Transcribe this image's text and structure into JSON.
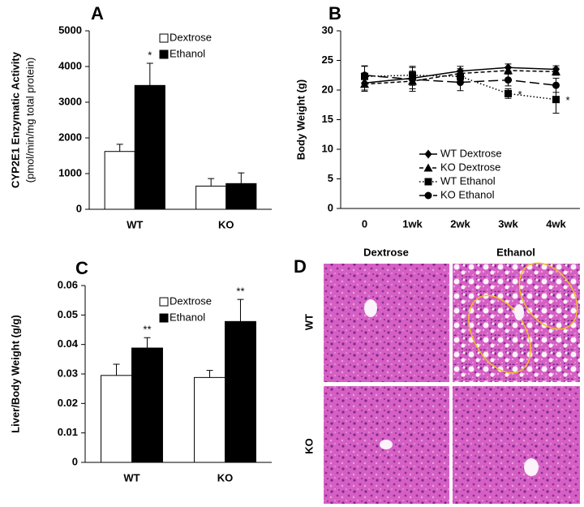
{
  "chart_data": [
    {
      "type": "bar",
      "panel": "A",
      "y_label": [
        "CYP2E1 Enzymatic Activity",
        "(pmol/min/mg total protein)"
      ],
      "categories": [
        "WT",
        "KO"
      ],
      "series": [
        {
          "name": "Dextrose",
          "color": "#ffffff",
          "values": [
            1620,
            650
          ],
          "errors": [
            200,
            210
          ],
          "annotations": [
            null,
            null
          ]
        },
        {
          "name": "Ethanol",
          "color": "#000000",
          "values": [
            3470,
            720
          ],
          "errors": [
            620,
            300
          ],
          "annotations": [
            "*",
            null
          ]
        }
      ],
      "ylim": [
        0,
        5000
      ],
      "yticks": [
        0,
        1000,
        2000,
        3000,
        4000,
        5000
      ],
      "grid": false,
      "legend": "upper center"
    },
    {
      "type": "line",
      "panel": "B",
      "y_label": [
        "Body Weight (g)"
      ],
      "categories": [
        "0",
        "1wk",
        "2wk",
        "3wk",
        "4wk"
      ],
      "series": [
        {
          "name": "WT Dextrose",
          "color": "#000000",
          "marker": "diamond",
          "dash": "solid",
          "values": [
            21.2,
            22.0,
            23.2,
            23.8,
            23.5
          ],
          "errors": [
            1.2,
            1.2,
            0.8,
            0.6,
            0.6
          ],
          "annotations": [
            null,
            null,
            null,
            null,
            null
          ]
        },
        {
          "name": "KO Dextrose",
          "color": "#000000",
          "marker": "triangle",
          "dash": "short",
          "values": [
            21.0,
            21.5,
            22.8,
            23.3,
            23.1
          ],
          "errors": [
            1.2,
            1.3,
            0.8,
            0.6,
            0.6
          ],
          "annotations": [
            null,
            null,
            null,
            null,
            null
          ]
        },
        {
          "name": "WT Ethanol",
          "color": "#000000",
          "marker": "square",
          "dash": "dotted",
          "values": [
            22.3,
            22.5,
            22.3,
            19.4,
            18.4
          ],
          "errors": [
            1.8,
            1.5,
            1.0,
            0.8,
            2.3
          ],
          "annotations": [
            null,
            null,
            null,
            "*",
            "*"
          ]
        },
        {
          "name": "KO Ethanol",
          "color": "#000000",
          "marker": "circle",
          "dash": "long",
          "values": [
            22.5,
            21.8,
            21.3,
            21.7,
            20.8
          ],
          "errors": [
            1.5,
            2.0,
            1.4,
            1.0,
            1.2
          ],
          "annotations": [
            null,
            null,
            null,
            null,
            null
          ]
        }
      ],
      "ylim": [
        0,
        30
      ],
      "yticks": [
        0,
        5,
        10,
        15,
        20,
        25,
        30
      ],
      "grid": false,
      "legend": "lower right"
    },
    {
      "type": "bar",
      "panel": "C",
      "y_label": [
        "Liver/Body Weight (g/g)"
      ],
      "categories": [
        "WT",
        "KO"
      ],
      "series": [
        {
          "name": "Dextrose",
          "color": "#ffffff",
          "values": [
            0.0295,
            0.0288
          ],
          "errors": [
            0.0038,
            0.0024
          ],
          "annotations": [
            null,
            null
          ]
        },
        {
          "name": "Ethanol",
          "color": "#000000",
          "values": [
            0.0388,
            0.0478
          ],
          "errors": [
            0.0035,
            0.0075
          ],
          "annotations": [
            "**",
            "**"
          ]
        }
      ],
      "ylim": [
        0,
        0.06
      ],
      "yticks": [
        0,
        0.01,
        0.02,
        0.03,
        0.04,
        0.05,
        0.06
      ],
      "grid": false,
      "legend": "upper center"
    }
  ],
  "histology": {
    "panel": "D",
    "columns": [
      "Dextrose",
      "Ethanol"
    ],
    "rows": [
      "WT",
      "KO"
    ]
  }
}
